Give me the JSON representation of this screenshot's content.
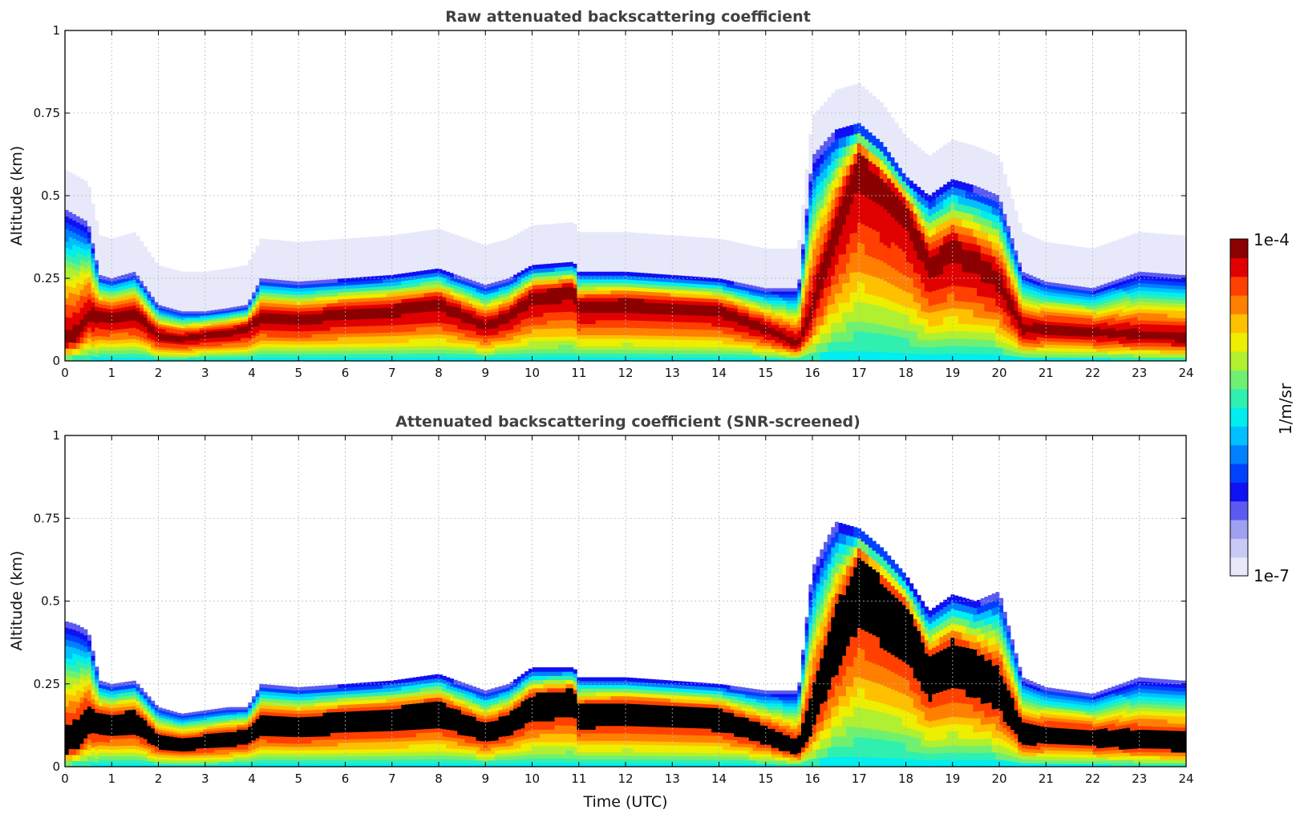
{
  "chart_data": [
    {
      "type": "heatmap",
      "title": "Raw attenuated backscattering coefficient",
      "xlabel": "",
      "ylabel": "Altitude (km)",
      "xlim": [
        0,
        24
      ],
      "ylim": [
        0,
        1
      ],
      "xticks": [
        "0",
        "1",
        "2",
        "3",
        "4",
        "5",
        "6",
        "7",
        "8",
        "9",
        "10",
        "11",
        "12",
        "13",
        "14",
        "15",
        "16",
        "17",
        "18",
        "19",
        "20",
        "21",
        "22",
        "23",
        "24"
      ],
      "yticks": [
        "0",
        "0.25",
        "0.5",
        "0.75",
        "1"
      ],
      "grid": true,
      "screened": false,
      "x": [
        0,
        0.25,
        0.5,
        0.75,
        1,
        1.5,
        2,
        2.5,
        3,
        3.5,
        3.9,
        4.2,
        5,
        6,
        7,
        8,
        9,
        9.5,
        10,
        10.9,
        11,
        12,
        13,
        14,
        15,
        15.7,
        16,
        16.5,
        17,
        17.5,
        18,
        18.5,
        19,
        19.5,
        20,
        20.5,
        21,
        22,
        23,
        23.9
      ],
      "layer_top_km": [
        0.46,
        0.44,
        0.42,
        0.26,
        0.25,
        0.27,
        0.17,
        0.15,
        0.15,
        0.16,
        0.17,
        0.25,
        0.24,
        0.25,
        0.26,
        0.28,
        0.23,
        0.25,
        0.29,
        0.3,
        0.27,
        0.27,
        0.26,
        0.25,
        0.22,
        0.22,
        0.62,
        0.7,
        0.72,
        0.66,
        0.56,
        0.5,
        0.55,
        0.53,
        0.5,
        0.27,
        0.24,
        0.22,
        0.27,
        0.26
      ],
      "peak_km": [
        0.06,
        0.08,
        0.14,
        0.14,
        0.14,
        0.15,
        0.08,
        0.07,
        0.08,
        0.09,
        0.1,
        0.14,
        0.13,
        0.15,
        0.16,
        0.18,
        0.11,
        0.14,
        0.2,
        0.22,
        0.17,
        0.18,
        0.17,
        0.16,
        0.1,
        0.05,
        0.16,
        0.42,
        0.62,
        0.54,
        0.47,
        0.3,
        0.35,
        0.31,
        0.25,
        0.1,
        0.1,
        0.09,
        0.08,
        0.07
      ]
    },
    {
      "type": "heatmap",
      "title": "Attenuated backscattering coefficient (SNR-screened)",
      "xlabel": "Time (UTC)",
      "ylabel": "Altitude (km)",
      "xlim": [
        0,
        24
      ],
      "ylim": [
        0,
        1
      ],
      "xticks": [
        "0",
        "1",
        "2",
        "3",
        "4",
        "5",
        "6",
        "7",
        "8",
        "9",
        "10",
        "11",
        "12",
        "13",
        "14",
        "15",
        "16",
        "17",
        "18",
        "19",
        "20",
        "21",
        "22",
        "23",
        "24"
      ],
      "yticks": [
        "0",
        "0.25",
        "0.5",
        "0.75",
        "1"
      ],
      "grid": true,
      "screened": true,
      "x": [
        0,
        0.25,
        0.5,
        0.75,
        1,
        1.5,
        2,
        2.5,
        3,
        3.5,
        3.9,
        4.2,
        5,
        6,
        7,
        8,
        9,
        9.5,
        10,
        10.9,
        11,
        12,
        13,
        14,
        15,
        15.7,
        16,
        16.5,
        17,
        17.5,
        18,
        18.5,
        19,
        19.5,
        20,
        20.5,
        21,
        22,
        23,
        23.9
      ],
      "layer_top_km": [
        0.44,
        0.43,
        0.41,
        0.26,
        0.25,
        0.26,
        0.18,
        0.16,
        0.17,
        0.18,
        0.18,
        0.25,
        0.24,
        0.25,
        0.26,
        0.28,
        0.23,
        0.25,
        0.3,
        0.3,
        0.27,
        0.27,
        0.26,
        0.25,
        0.23,
        0.23,
        0.6,
        0.74,
        0.72,
        0.66,
        0.58,
        0.47,
        0.52,
        0.5,
        0.53,
        0.27,
        0.24,
        0.22,
        0.27,
        0.26
      ],
      "peak_km": [
        0.06,
        0.08,
        0.14,
        0.14,
        0.14,
        0.15,
        0.08,
        0.07,
        0.08,
        0.09,
        0.1,
        0.14,
        0.13,
        0.15,
        0.16,
        0.18,
        0.11,
        0.14,
        0.2,
        0.22,
        0.17,
        0.18,
        0.17,
        0.16,
        0.1,
        0.05,
        0.16,
        0.42,
        0.62,
        0.54,
        0.47,
        0.3,
        0.35,
        0.31,
        0.25,
        0.1,
        0.1,
        0.09,
        0.08,
        0.07
      ]
    }
  ],
  "colorbar": {
    "min_label": "1e-7",
    "max_label": "1e-4",
    "unit": "1/m/sr",
    "scale": "log",
    "colors": [
      "#e8e8fb",
      "#c9c9f5",
      "#a0a0f0",
      "#5b5bf2",
      "#1010f5",
      "#0040ff",
      "#0080ff",
      "#00c0ff",
      "#00eef0",
      "#30f0b0",
      "#70f070",
      "#b0f030",
      "#eeee00",
      "#ffc000",
      "#ff8000",
      "#ff4000",
      "#e00000",
      "#8b0000"
    ]
  }
}
